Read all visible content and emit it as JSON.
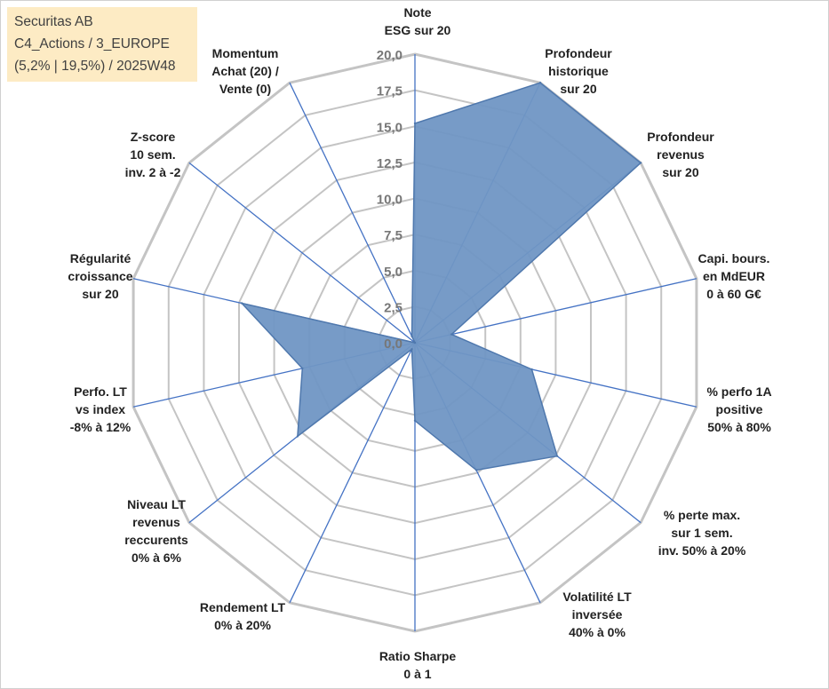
{
  "title_box": {
    "line1": "Securitas AB",
    "line2": "C4_Actions / 3_EUROPE",
    "line3": "(5,2% | 19,5%) / 2025W48"
  },
  "colors": {
    "fill": "#7096c4",
    "stroke": "#4f78ad",
    "spoke": "#4472c4",
    "grid": "#c4c4c4",
    "title_bg": "#fdebc4"
  },
  "chart_data": {
    "type": "radar",
    "ylim": [
      0,
      20
    ],
    "ticks": [
      "0,0",
      "2,5",
      "5,0",
      "7,5",
      "10,0",
      "12,5",
      "15,0",
      "17,5",
      "20,0"
    ],
    "axes": [
      [
        "Note",
        "ESG sur 20"
      ],
      [
        "Profondeur",
        "historique",
        "sur 20"
      ],
      [
        "Profondeur",
        "revenus",
        "sur 20"
      ],
      [
        "Capi. bours.",
        "en MdEUR",
        "0 à 60 G€"
      ],
      [
        "% perfo 1A",
        "positive",
        "50% à 80%"
      ],
      [
        "% perte max.",
        "sur 1 sem.",
        "inv. 50% à 20%"
      ],
      [
        "Volatilité LT",
        "inversée",
        "40% à 0%"
      ],
      [
        "Ratio Sharpe",
        "0 à 1"
      ],
      [
        "Rendement LT",
        "0% à 20%"
      ],
      [
        "Niveau LT",
        "revenus",
        "reccurents",
        "0% à 6%"
      ],
      [
        "Perfo. LT",
        "vs index",
        "-8% à 12%"
      ],
      [
        "Régularité",
        "croissance",
        "sur 20"
      ],
      [
        "Z-score",
        "10 sem.",
        "inv. 2 à -2"
      ],
      [
        "Momentum",
        "Achat (20) /",
        "Vente (0)"
      ]
    ],
    "series": [
      {
        "values": [
          15.2,
          20,
          20,
          2.6,
          8.3,
          12.6,
          9.8,
          5.4,
          0.5,
          10.4,
          8.0,
          12.3,
          0,
          0.5
        ]
      }
    ]
  }
}
